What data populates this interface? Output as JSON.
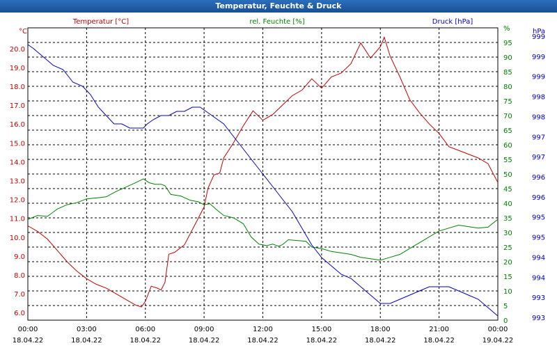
{
  "window": {
    "title": "Temperatur, Feuchte & Druck"
  },
  "colors": {
    "temperature": "#c00000",
    "humidity": "#008000",
    "pressure": "#0000c0",
    "grid": "#000000"
  },
  "chart_data": {
    "type": "line",
    "title": "Temperatur, Feuchte & Druck",
    "grid": true,
    "x_ticks": [
      {
        "time": "00:00",
        "date": "18.04.22"
      },
      {
        "time": "03:00",
        "date": "18.04.22"
      },
      {
        "time": "06:00",
        "date": "18.04.22"
      },
      {
        "time": "09:00",
        "date": "18.04.22"
      },
      {
        "time": "12:00",
        "date": "18.04.22"
      },
      {
        "time": "15:00",
        "date": "18.04.22"
      },
      {
        "time": "18:00",
        "date": "18.04.22"
      },
      {
        "time": "21:00",
        "date": "18.04.22"
      },
      {
        "time": "00:00",
        "date": "19.04.22"
      }
    ],
    "x_hours_range": [
      0,
      24
    ],
    "axes": {
      "temperature": {
        "label": "Temperatur [°C]",
        "unit": "°C",
        "range": [
          5.6,
          21.1
        ],
        "ticks": [
          "6.0",
          "7.0",
          "8.0",
          "9.0",
          "10.0",
          "11.0",
          "12.0",
          "13.0",
          "14.0",
          "15.0",
          "16.0",
          "17.0",
          "18.0",
          "19.0",
          "20.0"
        ]
      },
      "humidity": {
        "label": "rel. Feuchte [%]",
        "unit": "%",
        "range": [
          0,
          100
        ],
        "ticks": [
          "0",
          "5",
          "10",
          "15",
          "20",
          "25",
          "30",
          "35",
          "40",
          "45",
          "50",
          "55",
          "60",
          "65",
          "70",
          "75",
          "80",
          "85",
          "90",
          "95",
          "%"
        ]
      },
      "pressure": {
        "label": "Druck [hPa]",
        "unit": "hPa",
        "range": [
          992.9,
          999.9
        ],
        "ticks": [
          "993",
          "993",
          "994",
          "994",
          "995",
          "995",
          "996",
          "996",
          "997",
          "997",
          "998",
          "998",
          "999",
          "999",
          "999"
        ]
      }
    },
    "series": [
      {
        "name": "Temperatur [°C]",
        "axis": "temperature",
        "x": [
          0,
          0.5,
          1,
          1.5,
          2,
          2.5,
          3,
          3.5,
          4,
          4.5,
          5,
          5.5,
          5.8,
          6,
          6.3,
          6.6,
          6.8,
          7,
          7.2,
          7.5,
          8,
          8.5,
          9,
          9.2,
          9.5,
          9.8,
          10,
          10.5,
          11,
          11.5,
          12,
          12.5,
          13,
          13.5,
          14,
          14.5,
          15,
          15.5,
          16,
          16.5,
          17,
          17.5,
          18,
          18.2,
          18.5,
          19,
          19.5,
          20,
          20.5,
          21,
          21.5,
          22,
          22.5,
          23,
          23.5,
          24
        ],
        "values": [
          10.6,
          10.3,
          9.9,
          9.3,
          8.7,
          8.2,
          7.8,
          7.5,
          7.3,
          7.0,
          6.7,
          6.4,
          6.3,
          6.6,
          7.4,
          7.3,
          7.2,
          7.6,
          9.1,
          9.2,
          9.6,
          10.6,
          11.6,
          12.6,
          13.3,
          13.4,
          14.2,
          15.0,
          15.9,
          16.7,
          16.2,
          16.5,
          17.0,
          17.5,
          17.8,
          18.4,
          17.9,
          18.5,
          18.7,
          19.2,
          20.3,
          19.5,
          20.1,
          20.6,
          19.6,
          18.5,
          17.3,
          16.6,
          16.0,
          15.5,
          14.8,
          14.6,
          14.4,
          14.2,
          13.9,
          12.9
        ]
      },
      {
        "name": "rel. Feuchte [%]",
        "axis": "humidity",
        "x": [
          0,
          0.5,
          1,
          1.5,
          2,
          2.5,
          3,
          3.5,
          4,
          4.5,
          5,
          5.5,
          5.9,
          6.2,
          6.5,
          6.8,
          7,
          7.3,
          7.8,
          8.3,
          8.7,
          9,
          9.3,
          9.6,
          10,
          10.5,
          11,
          11.4,
          11.8,
          12.2,
          12.5,
          12.8,
          13,
          13.3,
          13.8,
          14.2,
          14.5,
          15,
          15.5,
          16,
          16.5,
          17,
          17.5,
          18,
          18.5,
          19,
          19.5,
          20,
          20.5,
          21,
          21.5,
          22,
          22.5,
          23,
          23.5,
          24
        ],
        "values": [
          34.5,
          35.8,
          35.5,
          38.0,
          39.5,
          40.2,
          41.5,
          41.8,
          42.2,
          44.0,
          45.5,
          47.0,
          48.3,
          47.0,
          46.5,
          46.5,
          46.0,
          43.0,
          42.5,
          41.0,
          40.5,
          39.5,
          39.8,
          38.0,
          35.8,
          35.0,
          33.0,
          28.5,
          26.0,
          25.5,
          26.0,
          25.3,
          25.8,
          27.5,
          27.2,
          27.0,
          25.0,
          24.5,
          23.5,
          23.0,
          22.5,
          21.5,
          21.0,
          20.5,
          21.5,
          22.5,
          24.5,
          26.5,
          28.5,
          30.5,
          31.5,
          32.5,
          32.0,
          31.5,
          31.8,
          34.5
        ]
      },
      {
        "name": "Druck [hPa]",
        "axis": "pressure",
        "x": [
          0,
          0.3,
          0.8,
          1.3,
          1.8,
          2.3,
          2.8,
          3.2,
          3.6,
          4,
          4.4,
          4.8,
          5.2,
          5.6,
          5.9,
          6.1,
          6.4,
          6.8,
          7.2,
          7.6,
          8,
          8.4,
          8.8,
          9.1,
          9.4,
          9.7,
          10,
          10.5,
          11,
          11.5,
          12,
          12.5,
          13,
          13.5,
          14,
          14.5,
          15,
          15.5,
          16,
          16.5,
          17,
          17.5,
          18,
          18.5,
          19,
          19.5,
          20,
          20.5,
          21,
          21.5,
          22,
          22.5,
          23,
          23.5,
          24
        ],
        "values": [
          999.5,
          999.4,
          999.2,
          999.0,
          998.9,
          998.6,
          998.5,
          998.3,
          998.0,
          997.8,
          997.6,
          997.6,
          997.5,
          997.5,
          997.5,
          997.6,
          997.7,
          997.8,
          997.8,
          997.9,
          997.9,
          998.0,
          998.0,
          997.9,
          997.8,
          997.7,
          997.6,
          997.3,
          997.0,
          996.7,
          996.4,
          996.1,
          995.8,
          995.5,
          995.1,
          994.7,
          994.4,
          994.2,
          994.0,
          993.9,
          993.7,
          993.5,
          993.3,
          993.3,
          993.4,
          993.5,
          993.6,
          993.7,
          993.7,
          993.7,
          993.6,
          993.5,
          993.4,
          993.2,
          993.0
        ]
      }
    ]
  }
}
